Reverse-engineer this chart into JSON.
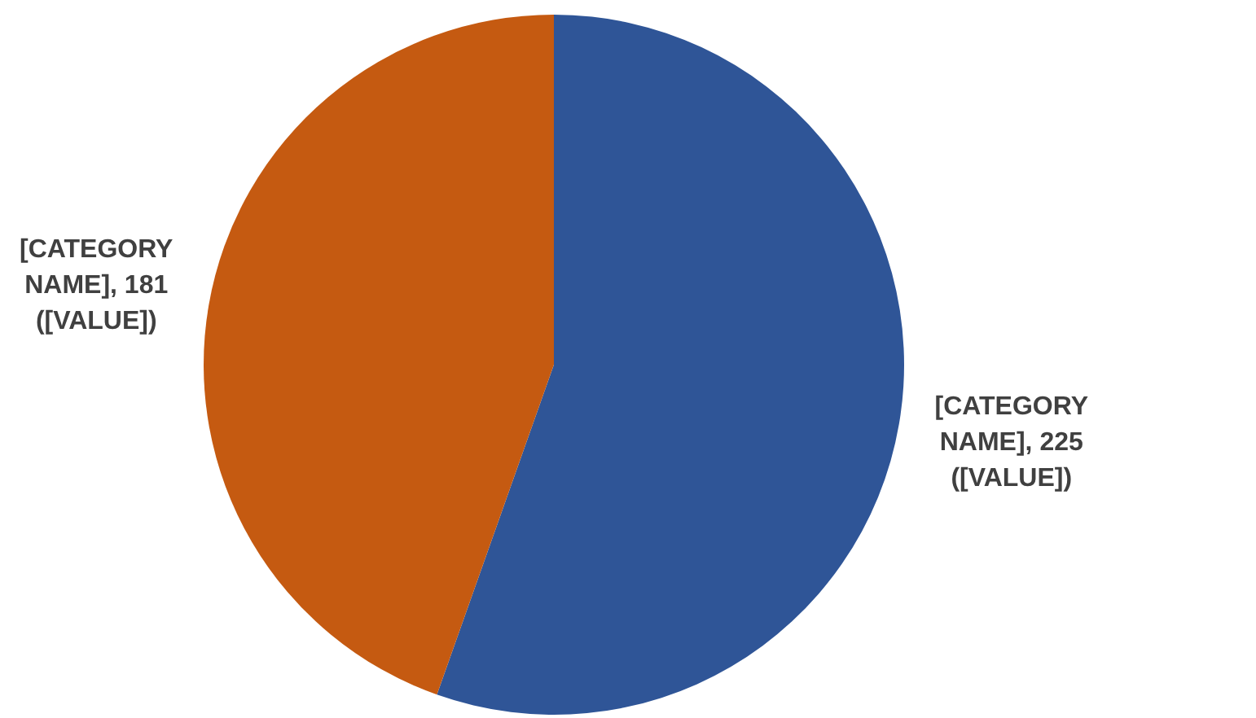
{
  "chart_data": {
    "type": "pie",
    "categories": [
      "[CATEGORY NAME]",
      "[CATEGORY NAME]"
    ],
    "values": [
      225,
      181
    ],
    "value_labels": [
      "225 ([VALUE])",
      "181 ([VALUE])"
    ],
    "colors": [
      "#2f5597",
      "#c55a11"
    ],
    "legend": false
  }
}
